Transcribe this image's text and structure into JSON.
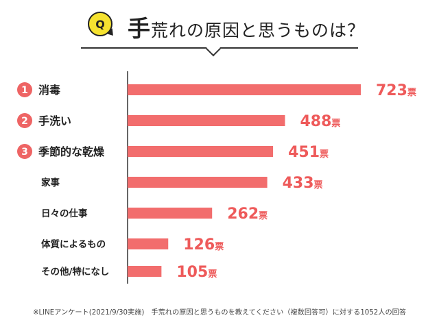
{
  "header": {
    "q_label": "Q",
    "title_first_char": "手",
    "title_rest": "荒れの原因と思うものは？"
  },
  "colors": {
    "bar": "#f26d6d",
    "value_text": "#ee5a5a",
    "rank_badge": "#ee6464",
    "axis": "#333333",
    "q_badge": "#f5e230"
  },
  "chart_data": {
    "type": "bar",
    "orientation": "horizontal",
    "title": "手荒れの原因と思うものは？",
    "unit": "票",
    "categories": [
      "消毒",
      "手洗い",
      "季節的な乾燥",
      "家事",
      "日々の仕事",
      "体質によるもの",
      "その他/特になし"
    ],
    "values": [
      723,
      488,
      451,
      433,
      262,
      126,
      105
    ],
    "ranks": [
      "1",
      "2",
      "3",
      "",
      "",
      "",
      ""
    ],
    "xlim": [
      0,
      723
    ],
    "grid": false,
    "legend": "none"
  },
  "footnote": "※LINEアンケート(2021/9/30実施)　手荒れの原因と思うものを教えてください（複数回答可）に対する1052人の回答"
}
